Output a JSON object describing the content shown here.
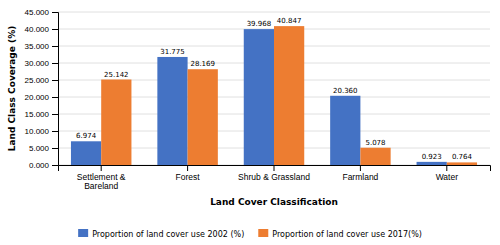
{
  "chart_data": {
    "type": "bar",
    "xlabel": "Land Cover Classification",
    "ylabel": "Land Class Coverage (%)",
    "categories": [
      "Settlement &\nBareland",
      "Forest",
      "Shrub & Grassland",
      "Farmland",
      "Water"
    ],
    "series": [
      {
        "name": "Proportion of land cover use 2002 (%)",
        "color": "#4472C4",
        "values": [
          6.974,
          31.775,
          39.968,
          20.36,
          0.923
        ],
        "value_labels": [
          "6.974",
          "31.775",
          "39.968",
          "20.360",
          "0.923"
        ]
      },
      {
        "name": "Proportion of land cover use 2017(%)",
        "color": "#ED7D31",
        "values": [
          25.142,
          28.169,
          40.847,
          5.078,
          0.764
        ],
        "value_labels": [
          "25.142",
          "28.169",
          "40.847",
          "5.078",
          "0.764"
        ]
      }
    ],
    "ylim": [
      0,
      45
    ],
    "yticks": [
      {
        "value": 0,
        "label": "0.000"
      },
      {
        "value": 5,
        "label": "5.000"
      },
      {
        "value": 10,
        "label": "10.000"
      },
      {
        "value": 15,
        "label": "15.000"
      },
      {
        "value": 20,
        "label": "20.000"
      },
      {
        "value": 25,
        "label": "25.000"
      },
      {
        "value": 30,
        "label": "30.000"
      },
      {
        "value": 35,
        "label": "35.000"
      },
      {
        "value": 40,
        "label": "40.000"
      },
      {
        "value": 45,
        "label": "45.000"
      }
    ],
    "grid": true,
    "data_labels": true,
    "legend": "bottom"
  }
}
